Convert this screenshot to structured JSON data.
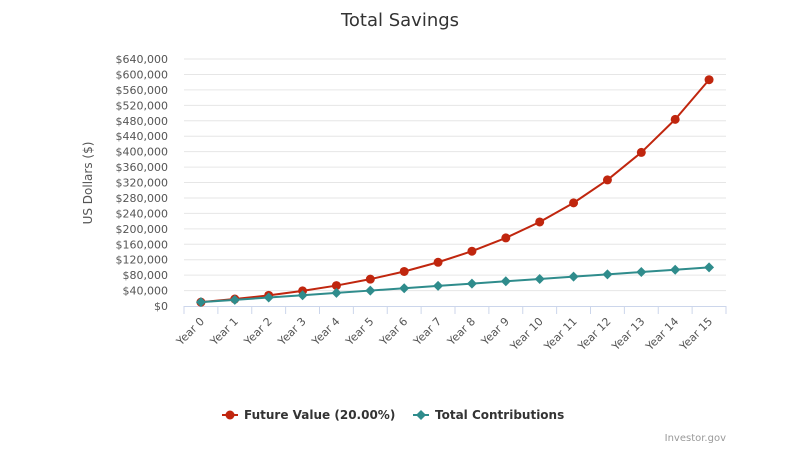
{
  "chart_data": {
    "type": "line",
    "title": "Total Savings",
    "xlabel": "",
    "ylabel": "US Dollars ($)",
    "categories": [
      "Year 0",
      "Year 1",
      "Year 2",
      "Year 3",
      "Year 4",
      "Year 5",
      "Year 6",
      "Year 7",
      "Year 8",
      "Year 9",
      "Year 10",
      "Year 11",
      "Year 12",
      "Year 13",
      "Year 14",
      "Year 15"
    ],
    "y_ticks": [
      "$0",
      "$40,000",
      "$80,000",
      "$120,000",
      "$160,000",
      "$200,000",
      "$240,000",
      "$280,000",
      "$320,000",
      "$360,000",
      "$400,000",
      "$440,000",
      "$480,000",
      "$520,000",
      "$560,000",
      "$600,000",
      "$640,000"
    ],
    "ylim": [
      0,
      640000
    ],
    "grid": true,
    "legend_position": "bottom-center",
    "series": [
      {
        "name": "Future Value (20.00%)",
        "color": "#c0260e",
        "marker": "circle",
        "values": [
          10000,
          18000,
          27600,
          39120,
          52944,
          69533,
          89440,
          113328,
          141993,
          176392,
          217670,
          267204,
          326645,
          397974,
          483569,
          586283
        ]
      },
      {
        "name": "Total Contributions",
        "color": "#2f8c8c",
        "marker": "diamond",
        "values": [
          10000,
          16000,
          22000,
          28000,
          34000,
          40000,
          46000,
          52000,
          58000,
          64000,
          70000,
          76000,
          82000,
          88000,
          94000,
          100000
        ]
      }
    ]
  },
  "credit": "Investor.gov"
}
